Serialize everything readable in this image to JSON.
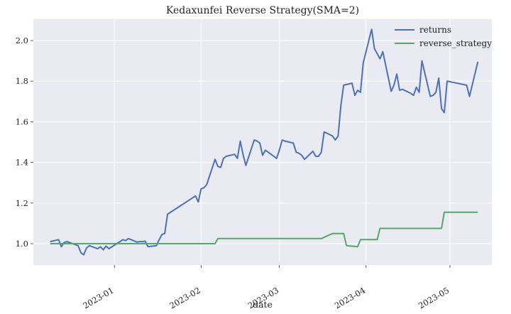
{
  "chart_data": {
    "type": "line",
    "title": "Kedaxunfei Reverse Strategy(SMA=2)",
    "xlabel": "date",
    "ylabel": "",
    "x_ticks": [
      "2023-01",
      "2023-02",
      "2023-03",
      "2023-04",
      "2023-05"
    ],
    "y_ticks": [
      "1.0",
      "1.2",
      "1.4",
      "1.6",
      "1.8",
      "2.0"
    ],
    "xlim": [
      "2022-12-03",
      "2023-05-16"
    ],
    "ylim": [
      0.895,
      2.105
    ],
    "grid": true,
    "legend_position": "top-right",
    "series": [
      {
        "name": "returns",
        "color": "#4c72b0",
        "points": [
          [
            "2022-12-09",
            1.01
          ],
          [
            "2022-12-12",
            1.02
          ],
          [
            "2022-12-13",
            0.985
          ],
          [
            "2022-12-14",
            1.005
          ],
          [
            "2022-12-15",
            1.01
          ],
          [
            "2022-12-16",
            1.005
          ],
          [
            "2022-12-19",
            0.99
          ],
          [
            "2022-12-20",
            0.955
          ],
          [
            "2022-12-21",
            0.945
          ],
          [
            "2022-12-22",
            0.978
          ],
          [
            "2022-12-23",
            0.99
          ],
          [
            "2022-12-26",
            0.975
          ],
          [
            "2022-12-27",
            0.985
          ],
          [
            "2022-12-28",
            0.97
          ],
          [
            "2022-12-29",
            0.988
          ],
          [
            "2022-12-30",
            0.975
          ],
          [
            "2023-01-03",
            1.01
          ],
          [
            "2023-01-04",
            1.02
          ],
          [
            "2023-01-05",
            1.015
          ],
          [
            "2023-01-06",
            1.025
          ],
          [
            "2023-01-09",
            1.008
          ],
          [
            "2023-01-10",
            1.01
          ],
          [
            "2023-01-11",
            1.01
          ],
          [
            "2023-01-12",
            1.012
          ],
          [
            "2023-01-13",
            0.985
          ],
          [
            "2023-01-16",
            0.99
          ],
          [
            "2023-01-17",
            1.02
          ],
          [
            "2023-01-18",
            1.045
          ],
          [
            "2023-01-19",
            1.05
          ],
          [
            "2023-01-20",
            1.145
          ],
          [
            "2023-01-30",
            1.235
          ],
          [
            "2023-01-31",
            1.205
          ],
          [
            "2023-02-01",
            1.27
          ],
          [
            "2023-02-02",
            1.275
          ],
          [
            "2023-02-03",
            1.29
          ],
          [
            "2023-02-06",
            1.415
          ],
          [
            "2023-02-07",
            1.38
          ],
          [
            "2023-02-08",
            1.375
          ],
          [
            "2023-02-09",
            1.42
          ],
          [
            "2023-02-10",
            1.43
          ],
          [
            "2023-02-13",
            1.44
          ],
          [
            "2023-02-14",
            1.42
          ],
          [
            "2023-02-15",
            1.505
          ],
          [
            "2023-02-16",
            1.44
          ],
          [
            "2023-02-17",
            1.385
          ],
          [
            "2023-02-20",
            1.51
          ],
          [
            "2023-02-21",
            1.505
          ],
          [
            "2023-02-22",
            1.495
          ],
          [
            "2023-02-23",
            1.435
          ],
          [
            "2023-02-24",
            1.46
          ],
          [
            "2023-02-27",
            1.43
          ],
          [
            "2023-02-28",
            1.42
          ],
          [
            "2023-03-01",
            1.46
          ],
          [
            "2023-03-02",
            1.51
          ],
          [
            "2023-03-03",
            1.505
          ],
          [
            "2023-03-06",
            1.495
          ],
          [
            "2023-03-07",
            1.45
          ],
          [
            "2023-03-08",
            1.445
          ],
          [
            "2023-03-09",
            1.435
          ],
          [
            "2023-03-10",
            1.415
          ],
          [
            "2023-03-13",
            1.455
          ],
          [
            "2023-03-14",
            1.43
          ],
          [
            "2023-03-15",
            1.43
          ],
          [
            "2023-03-16",
            1.45
          ],
          [
            "2023-03-17",
            1.55
          ],
          [
            "2023-03-20",
            1.53
          ],
          [
            "2023-03-21",
            1.51
          ],
          [
            "2023-03-22",
            1.53
          ],
          [
            "2023-03-23",
            1.68
          ],
          [
            "2023-03-24",
            1.78
          ],
          [
            "2023-03-27",
            1.79
          ],
          [
            "2023-03-28",
            1.73
          ],
          [
            "2023-03-29",
            1.755
          ],
          [
            "2023-03-30",
            1.745
          ],
          [
            "2023-03-31",
            1.89
          ],
          [
            "2023-04-03",
            2.055
          ],
          [
            "2023-04-04",
            1.96
          ],
          [
            "2023-04-06",
            1.91
          ],
          [
            "2023-04-07",
            1.945
          ],
          [
            "2023-04-10",
            1.75
          ],
          [
            "2023-04-11",
            1.78
          ],
          [
            "2023-04-12",
            1.835
          ],
          [
            "2023-04-13",
            1.755
          ],
          [
            "2023-04-14",
            1.76
          ],
          [
            "2023-04-17",
            1.74
          ],
          [
            "2023-04-18",
            1.73
          ],
          [
            "2023-04-19",
            1.77
          ],
          [
            "2023-04-20",
            1.745
          ],
          [
            "2023-04-21",
            1.9
          ],
          [
            "2023-04-24",
            1.725
          ],
          [
            "2023-04-25",
            1.73
          ],
          [
            "2023-04-26",
            1.745
          ],
          [
            "2023-04-27",
            1.815
          ],
          [
            "2023-04-28",
            1.665
          ],
          [
            "2023-04-29",
            1.645
          ],
          [
            "2023-04-30",
            1.8
          ],
          [
            "2023-05-07",
            1.78
          ],
          [
            "2023-05-08",
            1.725
          ],
          [
            "2023-05-11",
            1.895
          ]
        ]
      },
      {
        "name": "reverse_strategy",
        "color": "#55a868",
        "points": [
          [
            "2022-12-09",
            1.0
          ],
          [
            "2023-02-06",
            1.0
          ],
          [
            "2023-02-07",
            1.025
          ],
          [
            "2023-03-16",
            1.025
          ],
          [
            "2023-03-20",
            1.05
          ],
          [
            "2023-03-24",
            1.05
          ],
          [
            "2023-03-25",
            0.99
          ],
          [
            "2023-03-29",
            0.985
          ],
          [
            "2023-03-30",
            1.02
          ],
          [
            "2023-04-05",
            1.02
          ],
          [
            "2023-04-06",
            1.075
          ],
          [
            "2023-04-28",
            1.075
          ],
          [
            "2023-04-29",
            1.155
          ],
          [
            "2023-05-11",
            1.155
          ]
        ]
      }
    ]
  }
}
